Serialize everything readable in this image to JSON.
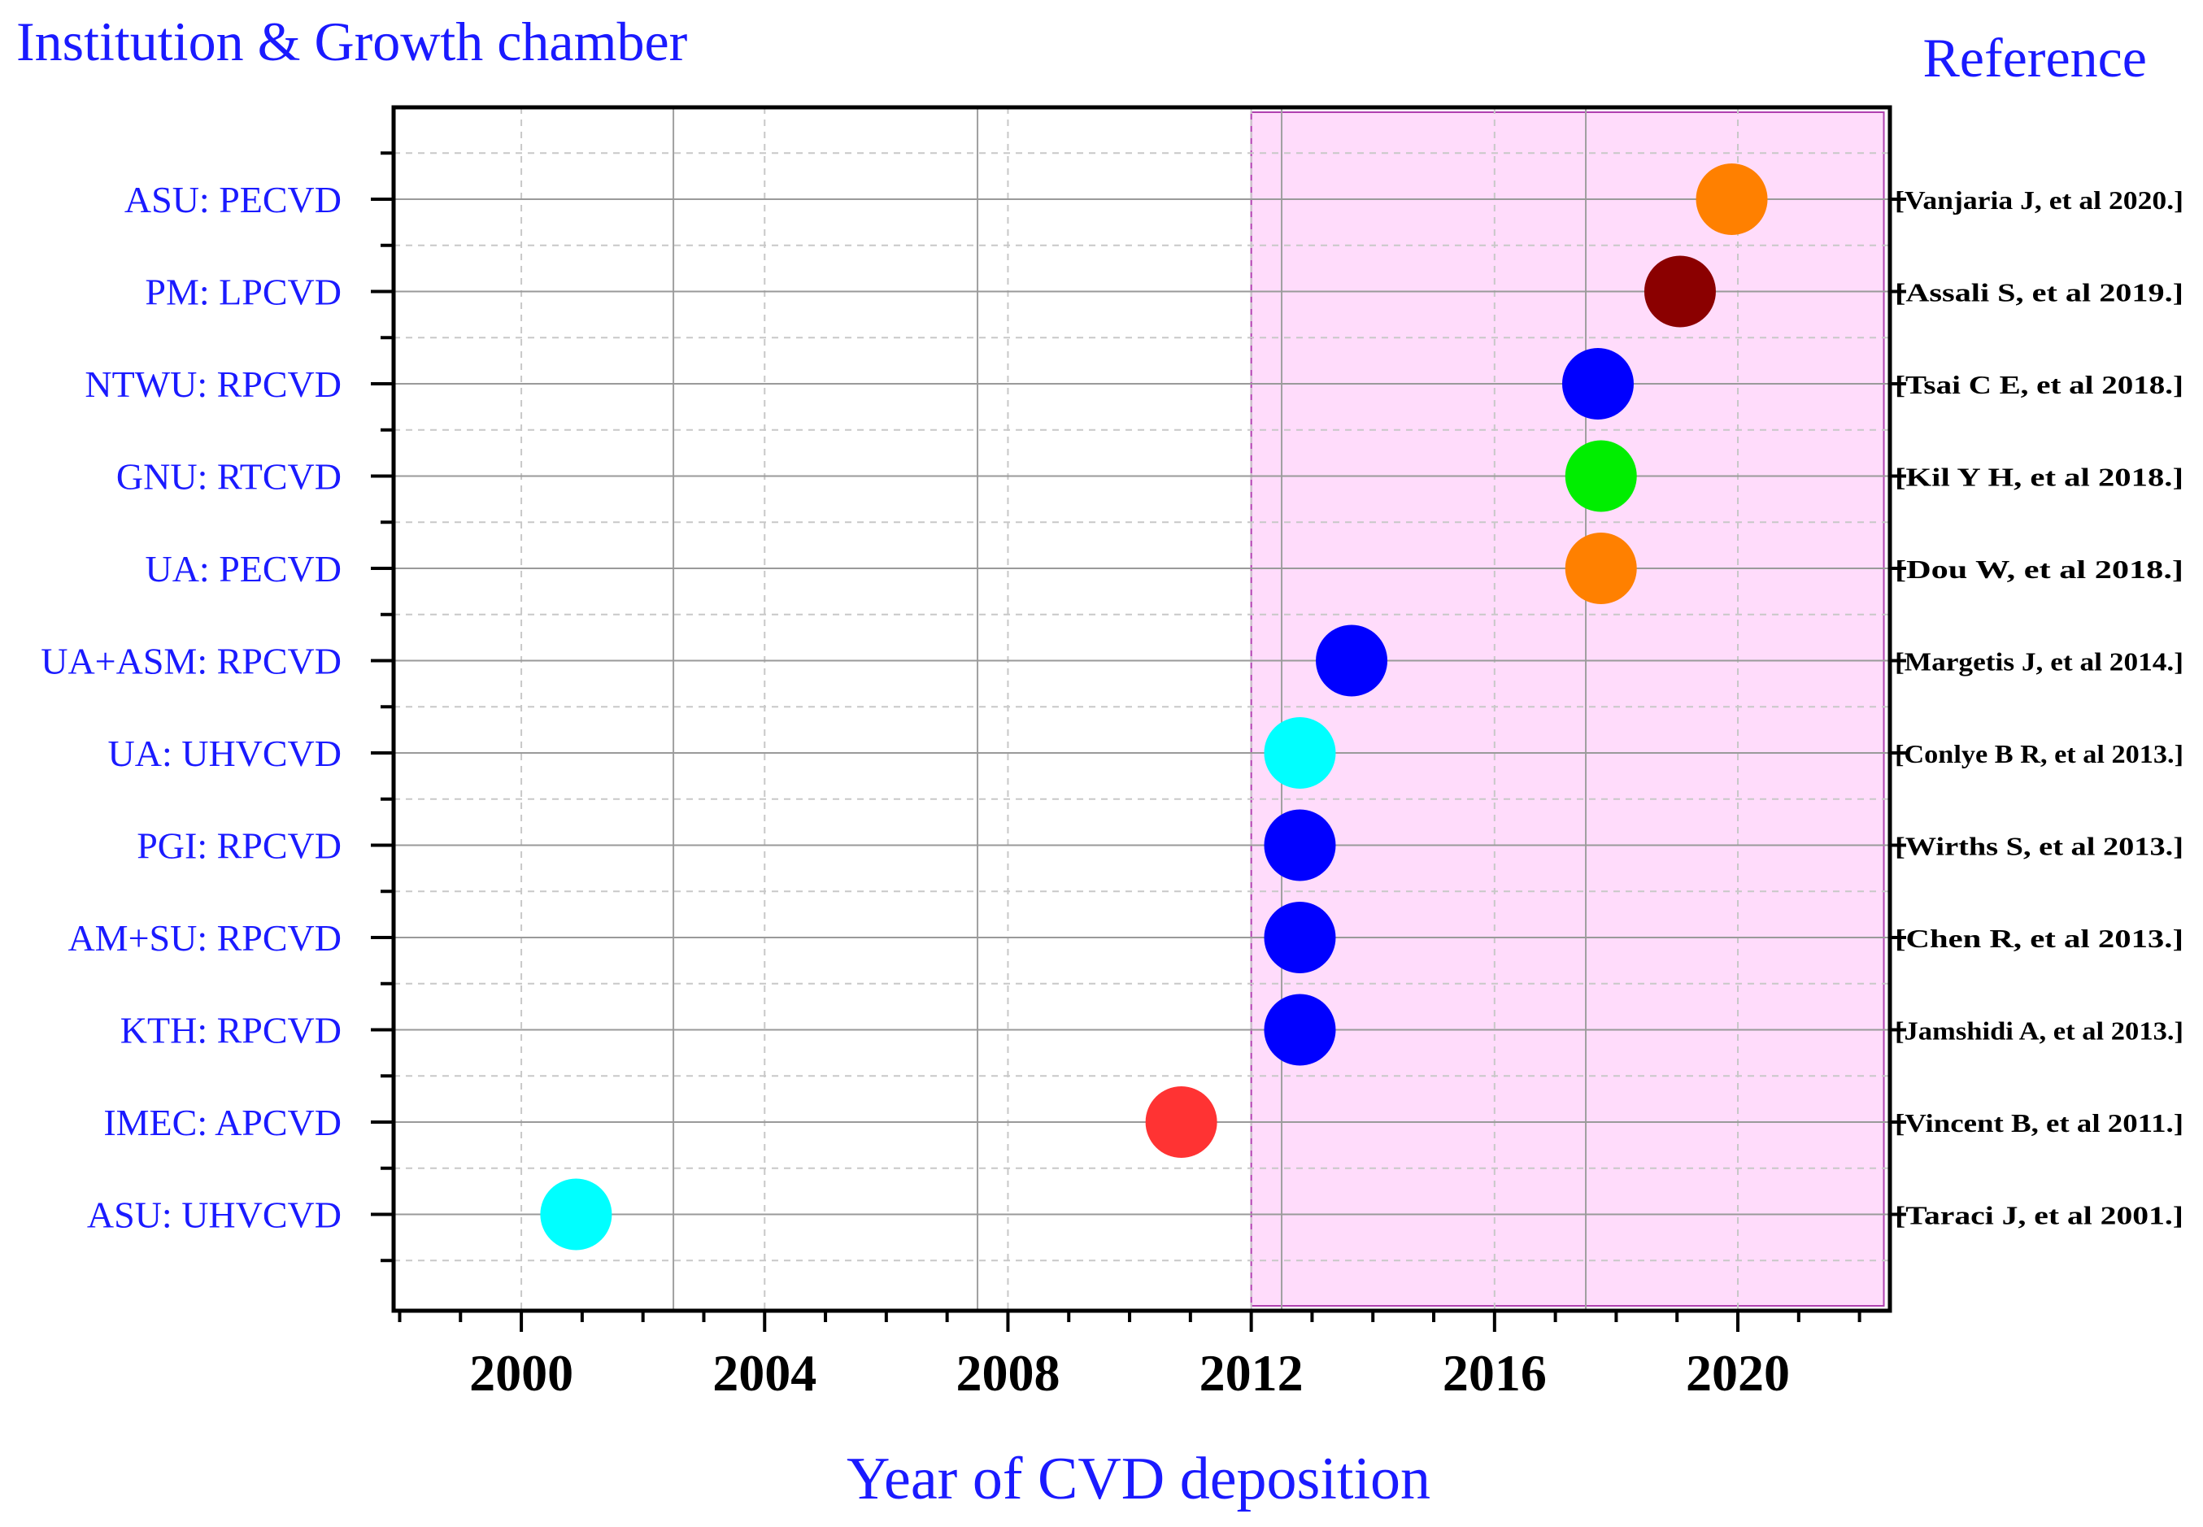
{
  "chart_data": {
    "type": "scatter",
    "title_left": "Institution & Growth chamber",
    "title_right": "Reference",
    "xlabel": "Year of CVD deposition",
    "xlim": [
      1997.9,
      2022.5
    ],
    "x_ticks": [
      2000,
      2004,
      2008,
      2012,
      2016,
      2020
    ],
    "highlight_range": [
      2012.0,
      2022.4
    ],
    "label_color": "#1a1aff",
    "points": [
      {
        "label": "ASU: PECVD",
        "year": 2019.9,
        "color": "#ff8000",
        "reference": "[Vanjaria J, et al 2020.]"
      },
      {
        "label": "PM: LPCVD",
        "year": 2019.05,
        "color": "#8b0000",
        "reference": "[Assali S, et al 2019.]"
      },
      {
        "label": "NTWU: RPCVD",
        "year": 2017.7,
        "color": "#0000ff",
        "reference": "[Tsai C E, et al 2018.]"
      },
      {
        "label": "GNU: RTCVD",
        "year": 2017.75,
        "color": "#00ee00",
        "reference": "[Kil Y H, et al 2018.]"
      },
      {
        "label": "UA: PECVD",
        "year": 2017.75,
        "color": "#ff8000",
        "reference": "[Dou W, et al 2018.]"
      },
      {
        "label": "UA+ASM: RPCVD",
        "year": 2013.65,
        "color": "#0000ff",
        "reference": "[Margetis J, et al 2014.]"
      },
      {
        "label": "UA: UHVCVD",
        "year": 2012.8,
        "color": "#00ffff",
        "reference": "[Conlye B R, et al 2013.]"
      },
      {
        "label": "PGI: RPCVD",
        "year": 2012.8,
        "color": "#0000ff",
        "reference": "[Wirths S, et al 2013.]"
      },
      {
        "label": "AM+SU: RPCVD",
        "year": 2012.8,
        "color": "#0000ff",
        "reference": "[Chen R, et al 2013.]"
      },
      {
        "label": "KTH: RPCVD",
        "year": 2012.8,
        "color": "#0000ff",
        "reference": "[Jamshidi A, et al 2013.]"
      },
      {
        "label": "IMEC: APCVD",
        "year": 2010.85,
        "color": "#ff3333",
        "reference": "[Vincent B, et al 2011.]"
      },
      {
        "label": "ASU: UHVCVD",
        "year": 2000.9,
        "color": "#00ffff",
        "reference": "[Taraci J, et al 2001.]"
      }
    ]
  }
}
